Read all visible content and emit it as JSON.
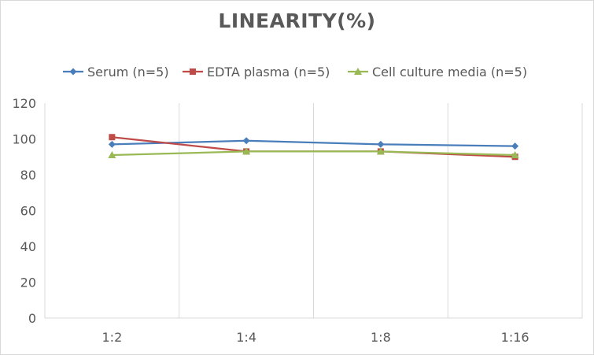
{
  "chart_data": {
    "type": "line",
    "title": "LINEARITY(%)",
    "xlabel": "",
    "ylabel": "",
    "categories": [
      "1:2",
      "1:4",
      "1:8",
      "1:16"
    ],
    "ylim": [
      0,
      120
    ],
    "yticks": [
      0,
      20,
      40,
      60,
      80,
      100,
      120
    ],
    "grid": "vertical",
    "legend_position": "top",
    "series": [
      {
        "name": "Serum (n=5)",
        "values": [
          97,
          99,
          97,
          96
        ],
        "color": "#4a7ebb",
        "marker": "diamond"
      },
      {
        "name": "EDTA plasma (n=5)",
        "values": [
          101,
          93,
          93,
          90
        ],
        "color": "#be4b48",
        "marker": "square"
      },
      {
        "name": "Cell culture media (n=5)",
        "values": [
          91,
          93,
          93,
          91
        ],
        "color": "#98b954",
        "marker": "triangle"
      }
    ]
  }
}
